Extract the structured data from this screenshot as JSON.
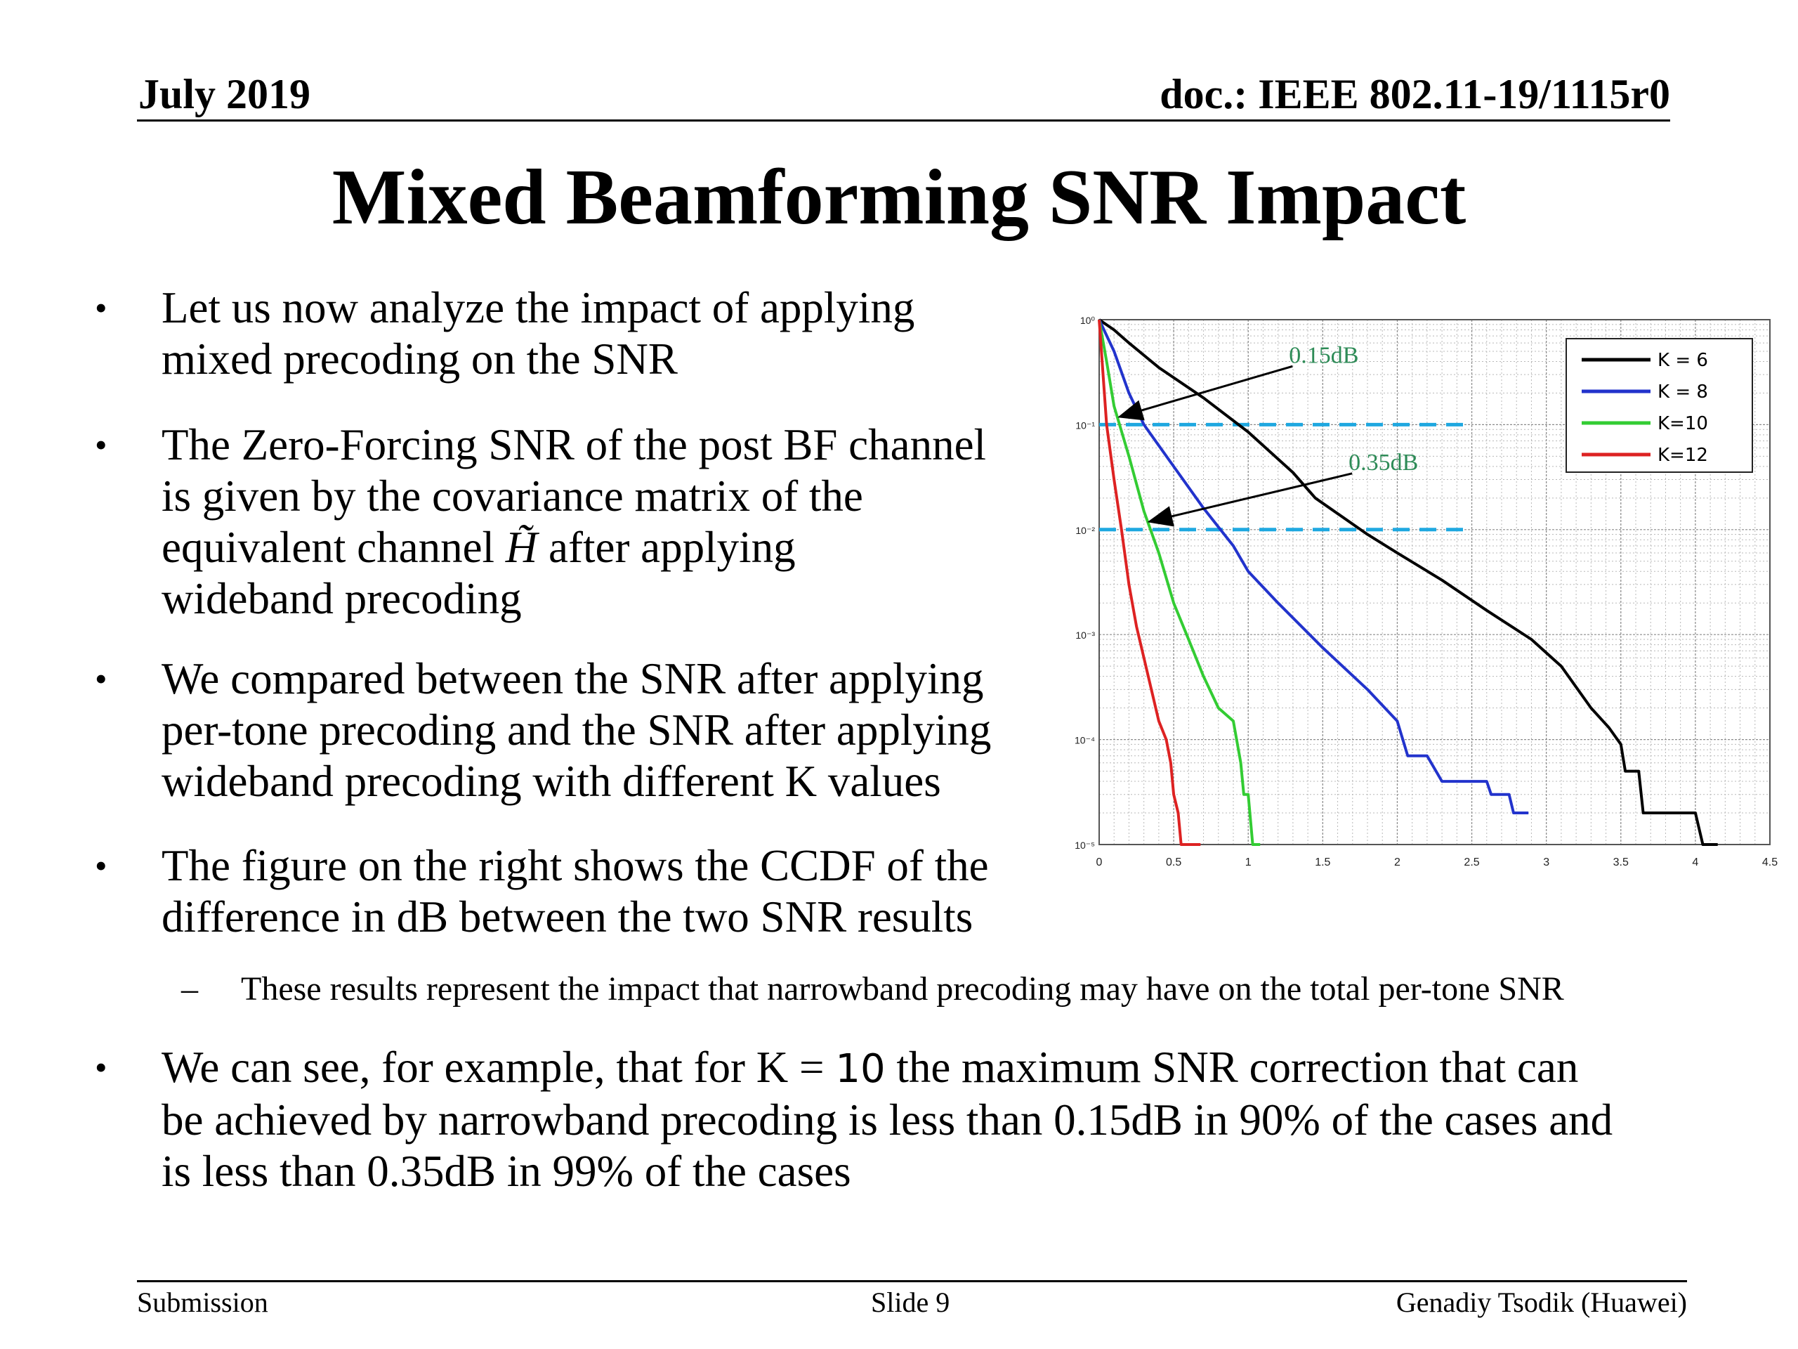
{
  "header": {
    "date": "July 2019",
    "doc_id": "doc.: IEEE 802.11-19/1115r0"
  },
  "title": "Mixed Beamforming SNR Impact",
  "bullets": {
    "b1": [
      "Let us now analyze the impact of applying",
      "mixed precoding on the SNR"
    ],
    "b2": [
      "The Zero-Forcing SNR of the post BF channel",
      "is given by the covariance matrix of the",
      "after applying",
      "wideband precoding"
    ],
    "b2_inline_prefix": "equivalent channel ",
    "b2_symbol": "H̃",
    "b3": [
      "We compared between the SNR after applying",
      "per-tone precoding and the SNR after applying",
      "wideband precoding with different K values"
    ],
    "b4": [
      "The figure on the right shows the CCDF of the",
      "difference in dB between the two SNR results"
    ],
    "sub": "These results represent the impact that narrowband precoding may have on the total per-tone SNR",
    "b5_prefix": "We can see, for example, that for K = ",
    "b5_k": "10",
    "b5_suffix": " the maximum SNR correction that can",
    "b5_line2": "be achieved by narrowband precoding is less than 0.15dB in 90% of the cases and",
    "b5_line3": "is less than 0.35dB in 99% of the cases"
  },
  "footer": {
    "left": "Submission",
    "center": "Slide 9",
    "right": "Genadiy Tsodik (Huawei)"
  },
  "chart_data": {
    "type": "line",
    "y_scale": "log",
    "xlim": [
      0,
      4.5
    ],
    "ylim": [
      1e-05,
      1
    ],
    "grid": true,
    "legend_position": "top-right",
    "x_ticks": [
      "0",
      "0.5",
      "1",
      "1.5",
      "2",
      "2.5",
      "3",
      "3.5",
      "4",
      "4.5"
    ],
    "y_ticks": [
      "10⁰",
      "10⁻¹",
      "10⁻²",
      "10⁻³",
      "10⁻⁴",
      "10⁻⁵"
    ],
    "series": [
      {
        "name": "K = 6",
        "color": "#000000",
        "x": [
          0,
          0.1,
          0.2,
          0.4,
          0.7,
          1.0,
          1.3,
          1.45,
          1.8,
          2.0,
          2.3,
          2.6,
          2.9,
          3.1,
          3.3,
          3.42,
          3.5,
          3.53,
          3.62,
          3.65,
          3.95,
          4.0,
          4.05,
          4.15
        ],
        "y": [
          1,
          0.8,
          0.6,
          0.35,
          0.18,
          0.085,
          0.035,
          0.02,
          0.009,
          0.006,
          0.0033,
          0.0017,
          0.0009,
          0.0005,
          0.0002,
          0.00013,
          9e-05,
          5e-05,
          5e-05,
          2e-05,
          2e-05,
          2e-05,
          1e-05,
          1e-05
        ]
      },
      {
        "name": "K = 8",
        "color": "#2233cc",
        "x": [
          0,
          0.1,
          0.2,
          0.3,
          0.5,
          0.7,
          0.9,
          1.0,
          1.2,
          1.5,
          1.8,
          2.0,
          2.07,
          2.2,
          2.3,
          2.6,
          2.63,
          2.75,
          2.78,
          2.85,
          2.88
        ],
        "y": [
          1,
          0.5,
          0.2,
          0.1,
          0.04,
          0.016,
          0.007,
          0.004,
          0.002,
          0.00075,
          0.0003,
          0.00015,
          7e-05,
          7e-05,
          4e-05,
          4e-05,
          3e-05,
          3e-05,
          2e-05,
          2e-05,
          2e-05
        ]
      },
      {
        "name": "K=10",
        "color": "#33cc33",
        "x": [
          0,
          0.05,
          0.1,
          0.2,
          0.3,
          0.4,
          0.5,
          0.6,
          0.7,
          0.8,
          0.9,
          0.95,
          0.97,
          1.0,
          1.03,
          1.08
        ],
        "y": [
          1,
          0.4,
          0.15,
          0.05,
          0.015,
          0.006,
          0.002,
          0.0009,
          0.0004,
          0.0002,
          0.00015,
          6e-05,
          3e-05,
          3e-05,
          1e-05,
          1e-05
        ]
      },
      {
        "name": "K=12",
        "color": "#dd2222",
        "x": [
          0,
          0.05,
          0.1,
          0.15,
          0.2,
          0.25,
          0.3,
          0.35,
          0.4,
          0.45,
          0.48,
          0.5,
          0.53,
          0.55,
          0.6,
          0.68
        ],
        "y": [
          1,
          0.1,
          0.03,
          0.01,
          0.003,
          0.0012,
          0.0006,
          0.0003,
          0.00015,
          0.0001,
          6e-05,
          3e-05,
          2e-05,
          1e-05,
          1e-05,
          1e-05
        ]
      }
    ],
    "annotations": [
      {
        "text": "0.15dB",
        "color": "#2e8b57",
        "level": 0.1,
        "arrow_to_x": 0.15
      },
      {
        "text": "0.35dB",
        "color": "#2e8b57",
        "level": 0.01,
        "arrow_to_x": 0.35
      }
    ],
    "reference_lines": {
      "color": "#1fa8e0",
      "levels": [
        0.1,
        0.01
      ],
      "x_end": 2.5
    }
  }
}
